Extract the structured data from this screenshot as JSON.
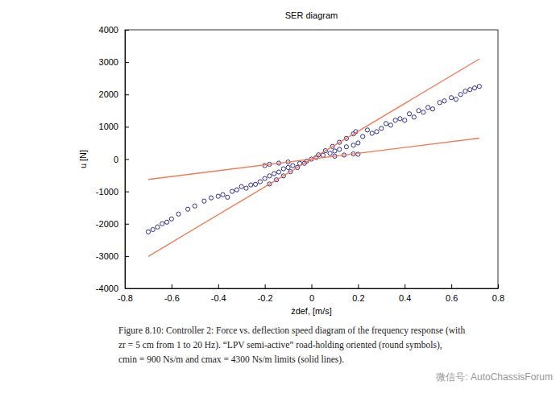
{
  "chart_data": {
    "type": "scatter",
    "title": "SER diagram",
    "x_label": "żdef, [m/s]",
    "y_label": "u [N]",
    "xlim": [
      -0.8,
      0.8
    ],
    "ylim": [
      -4000,
      4000
    ],
    "xticks": [
      -0.8,
      -0.6,
      -0.4,
      -0.2,
      0,
      0.2,
      0.4,
      0.6,
      0.8
    ],
    "yticks": [
      -4000,
      -3000,
      -2000,
      -1000,
      0,
      1000,
      2000,
      3000,
      4000
    ],
    "grid": false,
    "series": [
      {
        "type": "scatter",
        "marker": "circle-open",
        "color": "#2e2e8c",
        "x": [
          -0.7,
          -0.68,
          -0.66,
          -0.64,
          -0.62,
          -0.6,
          -0.57,
          -0.53,
          -0.5,
          -0.46,
          -0.43,
          -0.4,
          -0.38,
          -0.36,
          -0.34,
          -0.32,
          -0.3,
          -0.28,
          -0.26,
          -0.24,
          -0.22,
          -0.2,
          -0.18,
          -0.16,
          -0.14,
          -0.12,
          -0.1,
          -0.08,
          -0.05,
          -0.02,
          0,
          0.02,
          0.05,
          0.08,
          0.1,
          0.12,
          0.15,
          0.18,
          0.2,
          0.22,
          0.24,
          0.26,
          0.28,
          0.3,
          0.32,
          0.34,
          0.36,
          0.38,
          0.4,
          0.42,
          0.44,
          0.46,
          0.48,
          0.5,
          0.52,
          0.55,
          0.57,
          0.6,
          0.62,
          0.64,
          0.66,
          0.68,
          0.7,
          0.72,
          -0.18,
          -0.15,
          -0.12,
          -0.09,
          -0.06,
          -0.03,
          0.03,
          0.06,
          0.09,
          0.12,
          0.15,
          0.18,
          0.19,
          -0.18,
          -0.14,
          -0.1,
          0.1,
          0.14,
          0.18,
          -0.2,
          0.2
        ],
        "values": [
          -2250,
          -2180,
          -2100,
          -2000,
          -1950,
          -1850,
          -1700,
          -1550,
          -1450,
          -1300,
          -1200,
          -1150,
          -1100,
          -1180,
          -1000,
          -950,
          -850,
          -900,
          -800,
          -780,
          -700,
          -600,
          -520,
          -450,
          -400,
          -300,
          -260,
          -200,
          -130,
          -60,
          0,
          50,
          120,
          180,
          250,
          300,
          380,
          430,
          500,
          700,
          900,
          800,
          850,
          950,
          1100,
          1050,
          1200,
          1250,
          1200,
          1400,
          1300,
          1500,
          1450,
          1600,
          1550,
          1750,
          1800,
          1900,
          1850,
          2000,
          2100,
          2150,
          2200,
          2250,
          -770,
          -640,
          -520,
          -390,
          -260,
          -130,
          130,
          260,
          390,
          520,
          640,
          780,
          850,
          -160,
          -125,
          -90,
          90,
          125,
          160,
          -200,
          150
        ]
      },
      {
        "type": "line",
        "line_style": "solid",
        "color": "#f07a5a",
        "x": [
          -0.7,
          0.72
        ],
        "values": [
          -3010,
          3096
        ]
      },
      {
        "type": "line",
        "line_style": "solid",
        "color": "#f07a5a",
        "x": [
          -0.7,
          0.72
        ],
        "values": [
          -630,
          648
        ]
      }
    ],
    "caption": [
      "Figure 8.10: Controller 2: Force vs. deflection speed diagram of the frequency response (with",
      "zr = 5 cm from 1 to 20 Hz). “LPV semi-active” road-holding oriented (round symbols),",
      "cmin = 900 Ns/m and cmax = 4300 Ns/m limits (solid lines)."
    ],
    "annotations": [
      "微信号: AutoChassisForum"
    ]
  }
}
